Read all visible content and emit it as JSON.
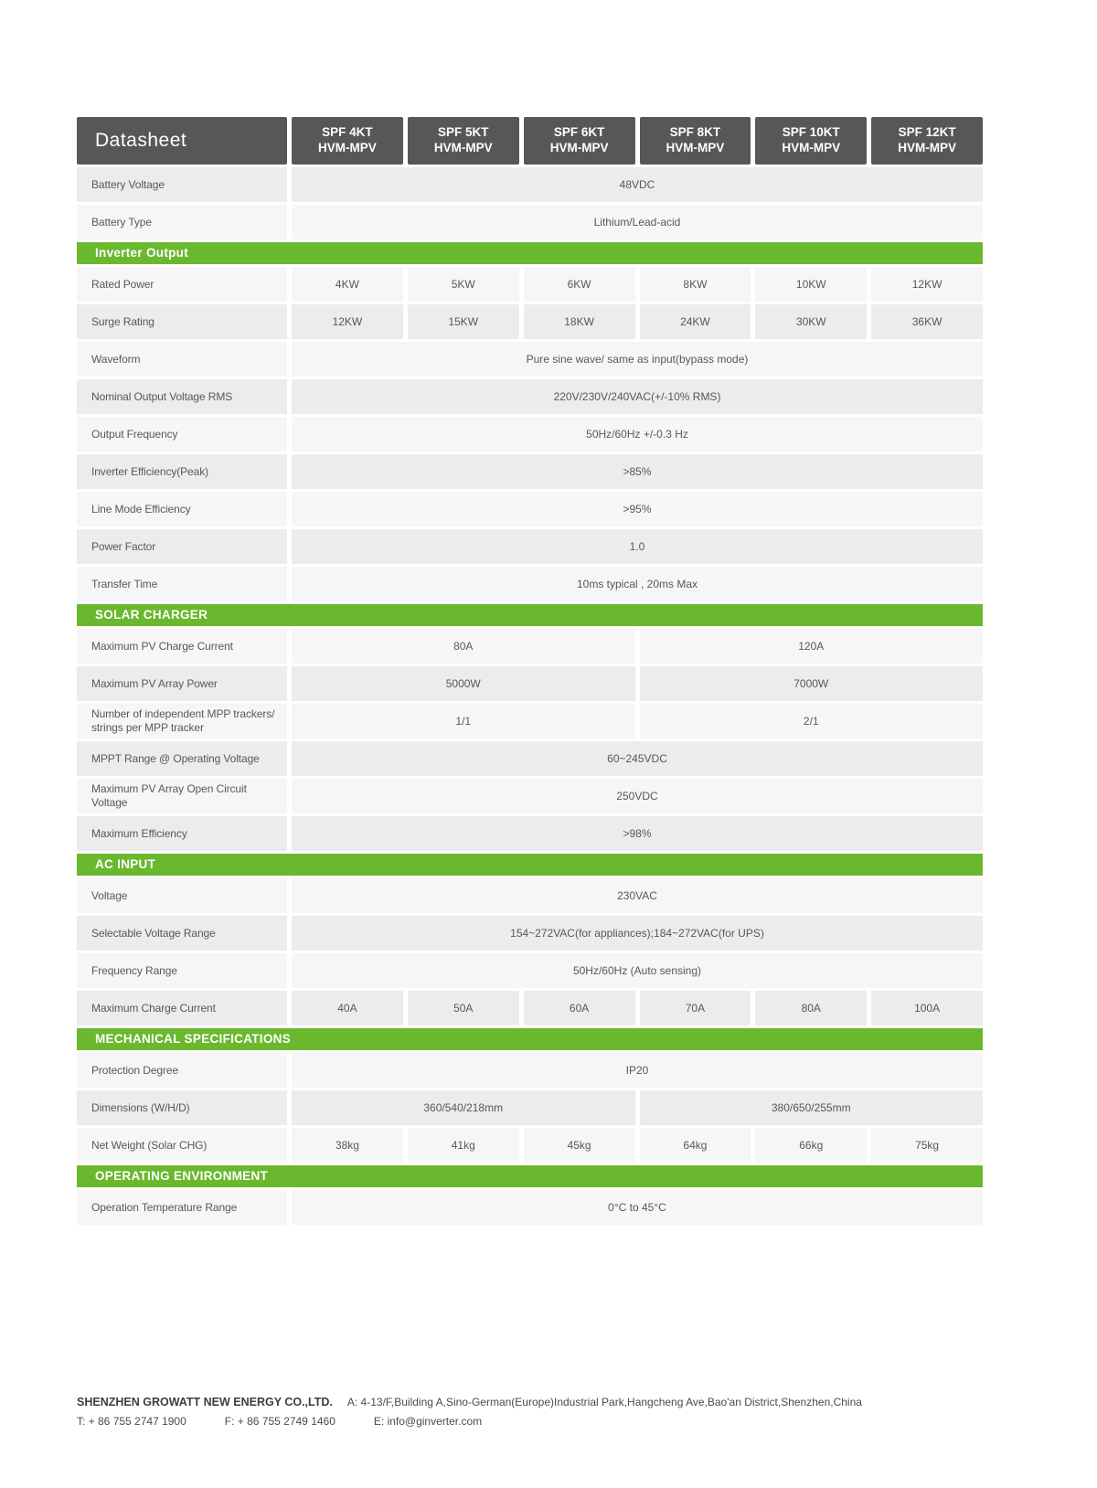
{
  "table": {
    "title": "Datasheet",
    "columns": [
      {
        "model": "SPF 4KT",
        "series": "HVM-MPV"
      },
      {
        "model": "SPF 5KT",
        "series": "HVM-MPV"
      },
      {
        "model": "SPF 6KT",
        "series": "HVM-MPV"
      },
      {
        "model": "SPF 8KT",
        "series": "HVM-MPV"
      },
      {
        "model": "SPF 10KT",
        "series": "HVM-MPV"
      },
      {
        "model": "SPF 12KT",
        "series": "HVM-MPV"
      }
    ],
    "sections": [
      {
        "header": null,
        "rows": [
          {
            "label": "Battery Voltage",
            "cells": [
              {
                "text": "48VDC",
                "span": 6
              }
            ]
          },
          {
            "label": "Battery Type",
            "cells": [
              {
                "text": "Lithium/Lead-acid",
                "span": 6
              }
            ]
          }
        ]
      },
      {
        "header": "Inverter Output",
        "rows": [
          {
            "label": "Rated Power",
            "cells": [
              {
                "text": "4KW",
                "span": 1
              },
              {
                "text": "5KW",
                "span": 1
              },
              {
                "text": "6KW",
                "span": 1
              },
              {
                "text": "8KW",
                "span": 1
              },
              {
                "text": "10KW",
                "span": 1
              },
              {
                "text": "12KW",
                "span": 1
              }
            ]
          },
          {
            "label": "Surge Rating",
            "cells": [
              {
                "text": "12KW",
                "span": 1
              },
              {
                "text": "15KW",
                "span": 1
              },
              {
                "text": "18KW",
                "span": 1
              },
              {
                "text": "24KW",
                "span": 1
              },
              {
                "text": "30KW",
                "span": 1
              },
              {
                "text": "36KW",
                "span": 1
              }
            ]
          },
          {
            "label": "Waveform",
            "cells": [
              {
                "text": "Pure sine wave/ same as input(bypass mode)",
                "span": 6
              }
            ]
          },
          {
            "label": "Nominal Output Voltage RMS",
            "cells": [
              {
                "text": "220V/230V/240VAC(+/-10% RMS)",
                "span": 6
              }
            ]
          },
          {
            "label": "Output Frequency",
            "cells": [
              {
                "text": "50Hz/60Hz +/-0.3 Hz",
                "span": 6
              }
            ]
          },
          {
            "label": "Inverter Efficiency(Peak)",
            "cells": [
              {
                "text": ">85%",
                "span": 6
              }
            ]
          },
          {
            "label": "Line Mode Efficiency",
            "cells": [
              {
                "text": ">95%",
                "span": 6
              }
            ]
          },
          {
            "label": "Power Factor",
            "cells": [
              {
                "text": "1.0",
                "span": 6
              }
            ]
          },
          {
            "label": "Transfer Time",
            "cells": [
              {
                "text": "10ms typical , 20ms Max",
                "span": 6
              }
            ]
          }
        ]
      },
      {
        "header": "SOLAR CHARGER",
        "rows": [
          {
            "label": "Maximum PV Charge Current",
            "cells": [
              {
                "text": "80A",
                "span": 3
              },
              {
                "text": "120A",
                "span": 3
              }
            ]
          },
          {
            "label": "Maximum PV Array Power",
            "cells": [
              {
                "text": "5000W",
                "span": 3
              },
              {
                "text": "7000W",
                "span": 3
              }
            ]
          },
          {
            "label": "Number of independent MPP trackers/\nstrings per MPP tracker",
            "cells": [
              {
                "text": "1/1",
                "span": 3
              },
              {
                "text": "2/1",
                "span": 3
              }
            ]
          },
          {
            "label": "MPPT Range @ Operating Voltage",
            "cells": [
              {
                "text": "60~245VDC",
                "span": 6
              }
            ]
          },
          {
            "label": "Maximum PV Array Open Circuit Voltage",
            "cells": [
              {
                "text": "250VDC",
                "span": 6
              }
            ]
          },
          {
            "label": "Maximum Efficiency",
            "cells": [
              {
                "text": ">98%",
                "span": 6
              }
            ]
          }
        ]
      },
      {
        "header": "AC INPUT",
        "rows": [
          {
            "label": "Voltage",
            "cells": [
              {
                "text": "230VAC",
                "span": 6
              }
            ]
          },
          {
            "label": "Selectable Voltage Range",
            "cells": [
              {
                "text": "154~272VAC(for appliances);184~272VAC(for UPS)",
                "span": 6
              }
            ]
          },
          {
            "label": "Frequency Range",
            "cells": [
              {
                "text": "50Hz/60Hz (Auto sensing)",
                "span": 6
              }
            ]
          },
          {
            "label": "Maximum Charge Current",
            "cells": [
              {
                "text": "40A",
                "span": 1
              },
              {
                "text": "50A",
                "span": 1
              },
              {
                "text": "60A",
                "span": 1
              },
              {
                "text": "70A",
                "span": 1
              },
              {
                "text": "80A",
                "span": 1
              },
              {
                "text": "100A",
                "span": 1
              }
            ]
          }
        ]
      },
      {
        "header": "MECHANICAL SPECIFICATIONS",
        "rows": [
          {
            "label": "Protection Degree",
            "cells": [
              {
                "text": "IP20",
                "span": 6
              }
            ]
          },
          {
            "label": "Dimensions (W/H/D)",
            "cells": [
              {
                "text": "360/540/218mm",
                "span": 3
              },
              {
                "text": "380/650/255mm",
                "span": 3
              }
            ]
          },
          {
            "label": "Net Weight (Solar CHG)",
            "cells": [
              {
                "text": "38kg",
                "span": 1
              },
              {
                "text": "41kg",
                "span": 1
              },
              {
                "text": "45kg",
                "span": 1
              },
              {
                "text": "64kg",
                "span": 1
              },
              {
                "text": "66kg",
                "span": 1
              },
              {
                "text": "75kg",
                "span": 1
              }
            ]
          }
        ]
      },
      {
        "header": "OPERATING ENVIRONMENT",
        "rows": [
          {
            "label": "Operation Temperature Range",
            "cells": [
              {
                "text": "0°C to 45°C",
                "span": 6
              }
            ]
          }
        ]
      }
    ]
  },
  "colors": {
    "header_dark": "#595756",
    "accent_green": "#6ab82e",
    "row_dark": "#ececec",
    "row_light": "#f6f6f6",
    "text": "#595757"
  },
  "footer": {
    "company": "SHENZHEN GROWATT NEW ENERGY CO.,LTD.",
    "address": "A: 4-13/F,Building A,Sino-German(Europe)Industrial Park,Hangcheng Ave,Bao'an District,Shenzhen,China",
    "tel": "T:  + 86 755 2747 1900",
    "fax": "F:  + 86 755 2749 1460",
    "email": "E:  info@ginverter.com"
  }
}
